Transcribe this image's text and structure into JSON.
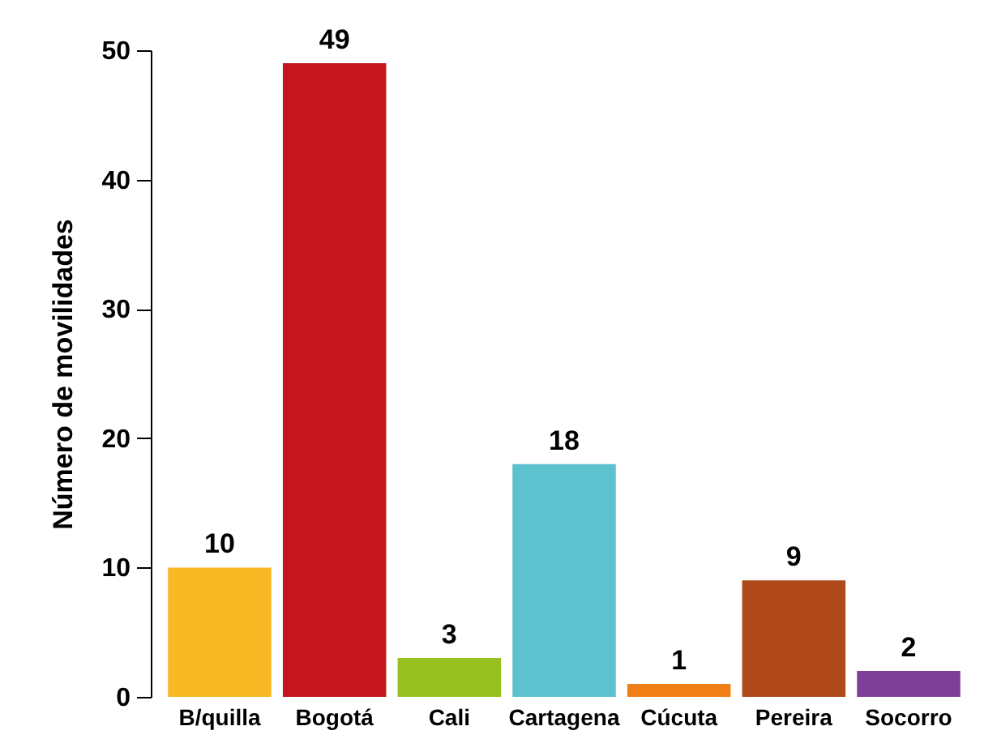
{
  "chart_data": {
    "type": "bar",
    "ylabel": "Número de movilidades",
    "categories": [
      "B/quilla",
      "Bogotá",
      "Cali",
      "Cartagena",
      "Cúcuta",
      "Pereira",
      "Socorro"
    ],
    "values": [
      10,
      49,
      3,
      18,
      1,
      9,
      2
    ],
    "colors": [
      "#f7b823",
      "#c4161c",
      "#96c11f",
      "#5ec1ce",
      "#f07e16",
      "#b0491a",
      "#7e3f98"
    ],
    "ylim": [
      0,
      50
    ],
    "yticks": [
      0,
      10,
      20,
      30,
      40,
      50
    ],
    "grid": false,
    "data_labels": true
  }
}
